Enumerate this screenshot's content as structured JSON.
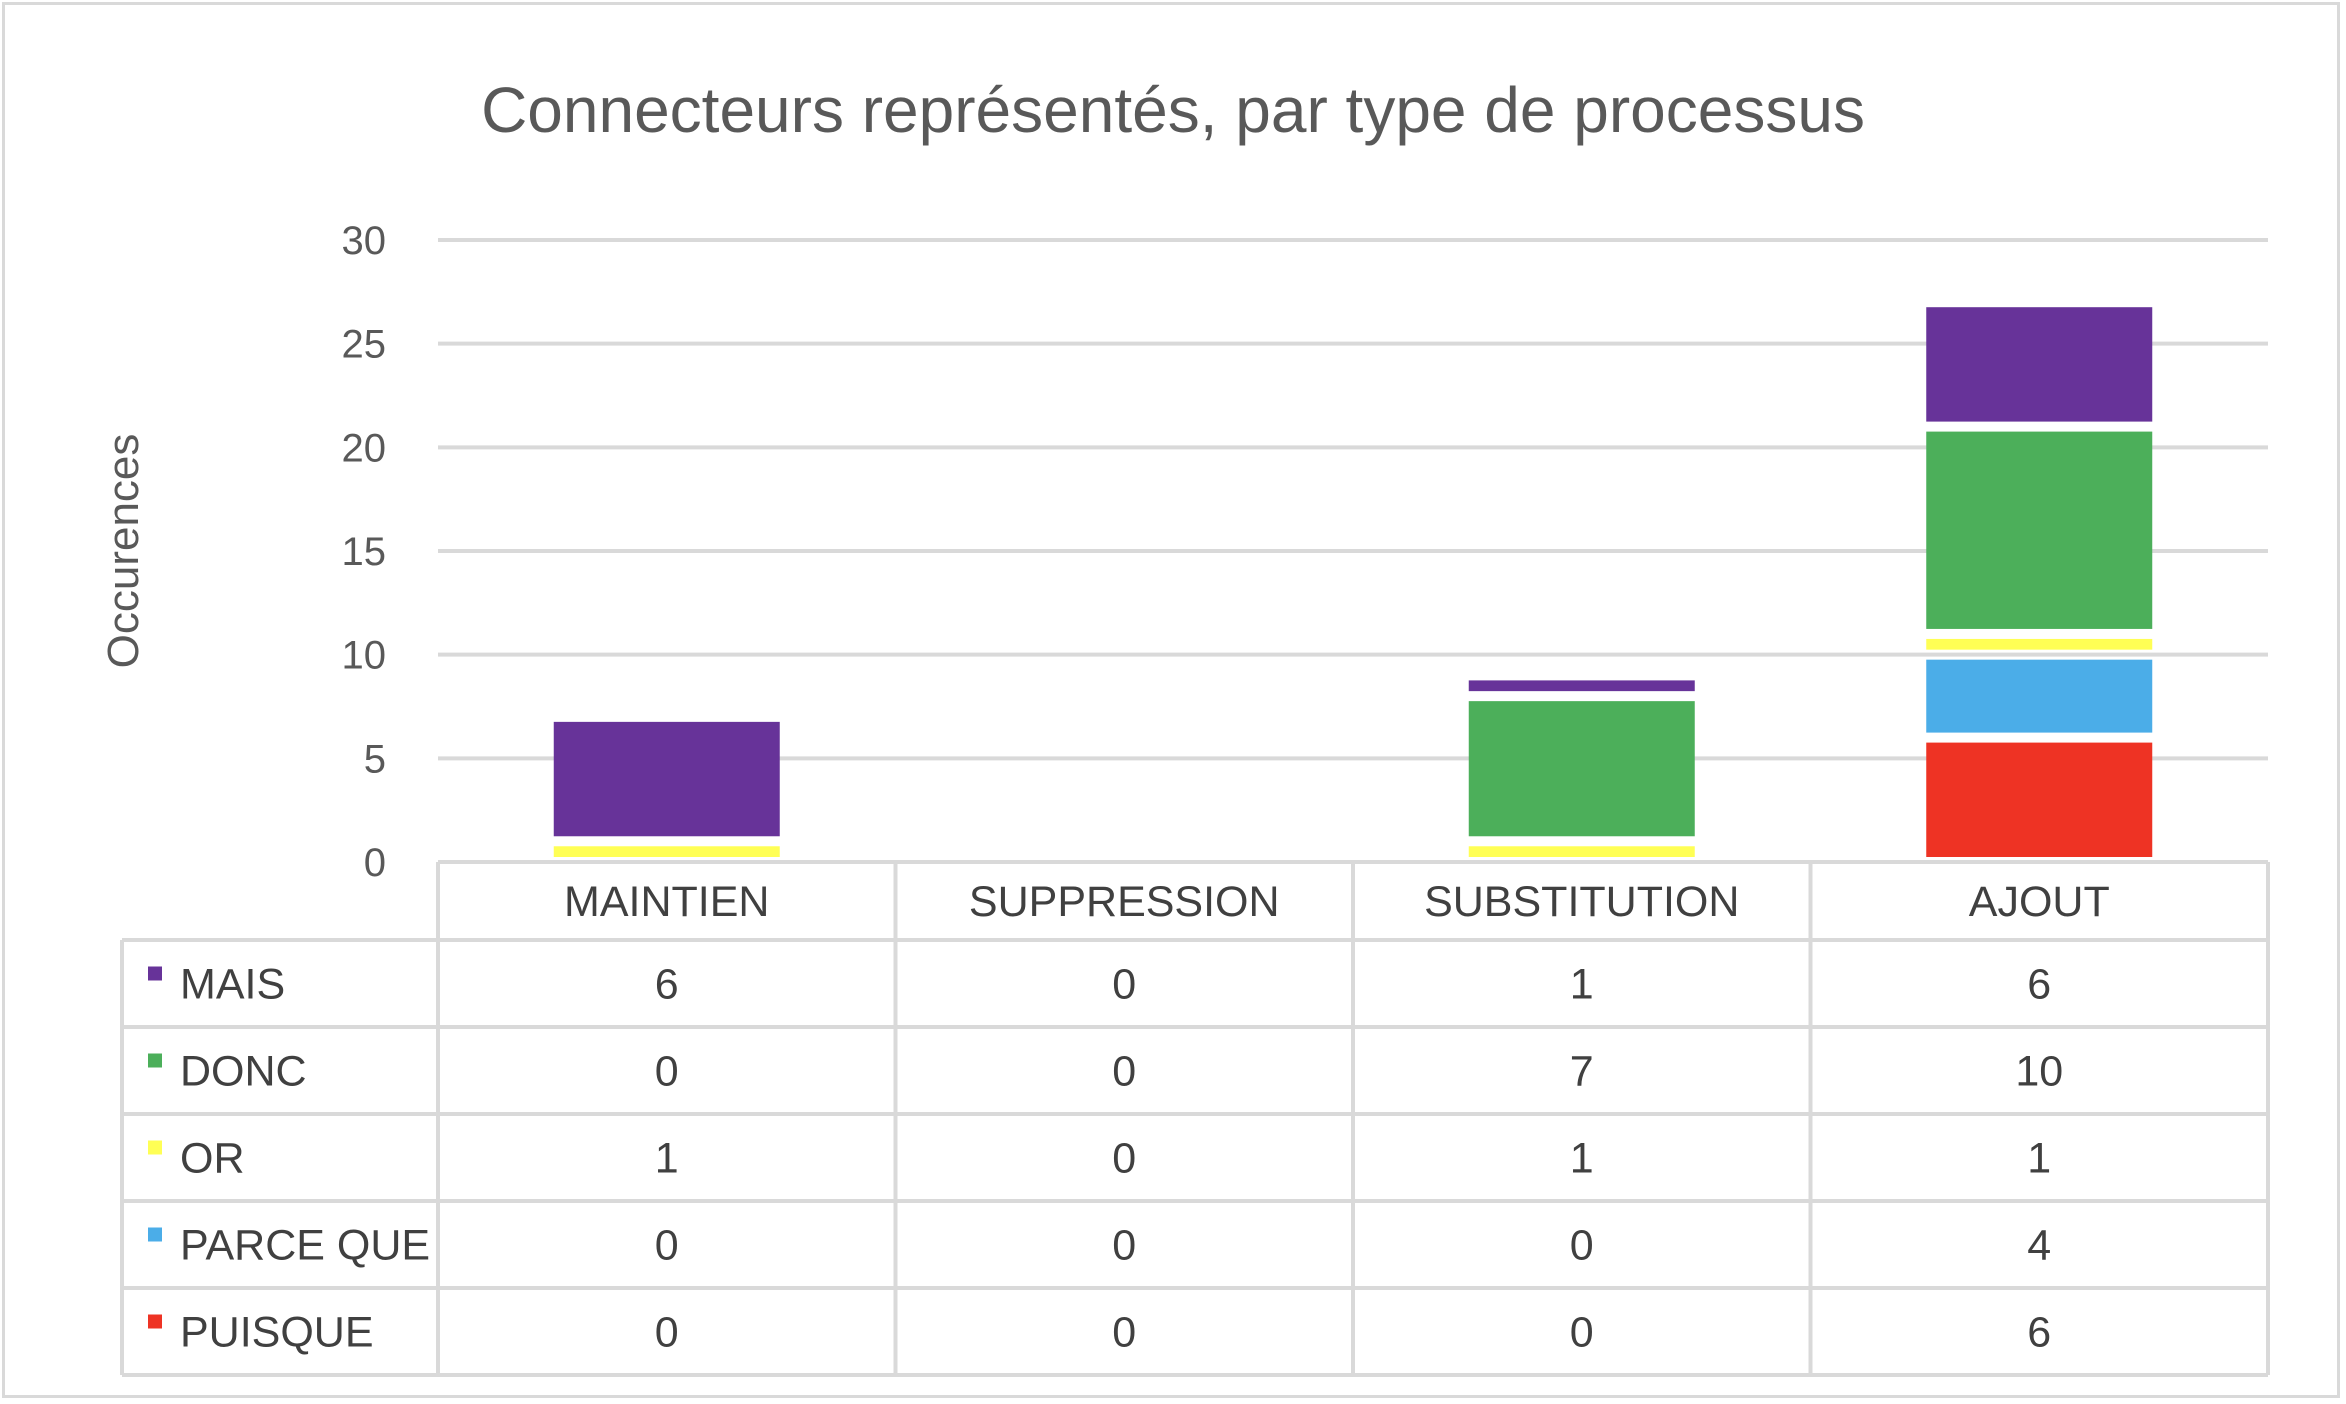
{
  "chart_data": {
    "type": "bar",
    "stacked": true,
    "title": "Connecteurs représentés, par type de processus",
    "xlabel": "",
    "ylabel": "Occurences",
    "ylim": [
      0,
      30
    ],
    "yticks": [
      0,
      5,
      10,
      15,
      20,
      25,
      30
    ],
    "grid": true,
    "legend": "data-table",
    "categories": [
      "MAINTIEN",
      "SUPPRESSION",
      "SUBSTITUTION",
      "AJOUT"
    ],
    "series": [
      {
        "name": "MAIS",
        "color": "#673399",
        "values": [
          6,
          0,
          1,
          6
        ]
      },
      {
        "name": "DONC",
        "color": "#4caf5a",
        "values": [
          0,
          0,
          7,
          10
        ]
      },
      {
        "name": "OR",
        "color": "#ffff55",
        "values": [
          1,
          0,
          1,
          1
        ]
      },
      {
        "name": "PARCE QUE",
        "color": "#4bade8",
        "values": [
          0,
          0,
          0,
          4
        ]
      },
      {
        "name": "PUISQUE",
        "color": "#ee3324",
        "values": [
          0,
          0,
          0,
          6
        ]
      }
    ],
    "stack_order": [
      "PUISQUE",
      "PARCE QUE",
      "OR",
      "DONC",
      "MAIS"
    ]
  }
}
